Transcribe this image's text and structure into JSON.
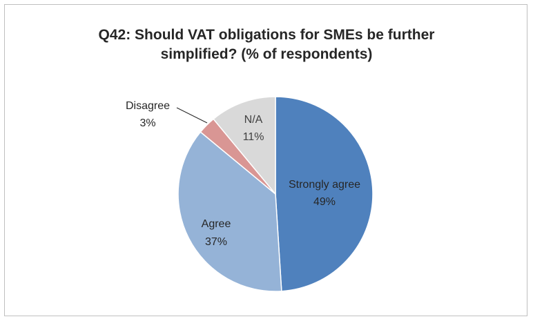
{
  "chart_data": {
    "type": "pie",
    "title_line1": "Q42: Should VAT obligations for SMEs be further",
    "title_line2": "simplified? (% of respondents)",
    "start_angle_deg": 0,
    "direction": "clockwise",
    "slices": [
      {
        "label": "Strongly agree",
        "value": 49,
        "display": "49%",
        "color": "#4f81bd"
      },
      {
        "label": "Agree",
        "value": 37,
        "display": "37%",
        "color": "#95b3d7"
      },
      {
        "label": "Disagree",
        "value": 3,
        "display": "3%",
        "color": "#d99694"
      },
      {
        "label": "N/A",
        "value": 11,
        "display": "11%",
        "color": "#d9d9d9"
      }
    ]
  }
}
